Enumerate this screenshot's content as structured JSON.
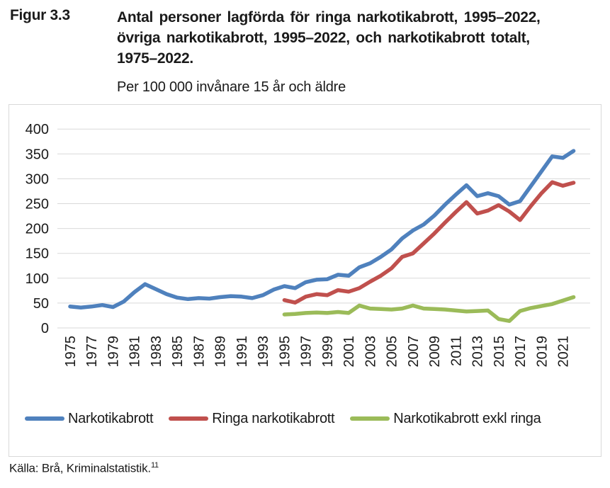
{
  "figure": {
    "label": "Figur 3.3",
    "title_lines": [
      "Antal personer lagförda för ringa narkotikabrott, 1995–2022,",
      "övriga narkotikabrott, 1995–2022, och narkotikabrott totalt,",
      "1975–2022."
    ],
    "subtitle": "Per 100 000 invånare 15 år och äldre",
    "source": "Källa: Brå, Kriminalstatistik.",
    "source_note_ref": "11"
  },
  "chart_data": {
    "type": "line",
    "title": "Antal personer lagförda för ringa narkotikabrott, 1995–2022, övriga narkotikabrott, 1995–2022, och narkotikabrott totalt, 1975–2022.",
    "subtitle": "Per 100 000 invånare 15 år och äldre",
    "xlabel": "",
    "ylabel": "Per 100 000 invånare 15 år och äldre",
    "ylim": [
      0,
      400
    ],
    "ytick_step": 50,
    "grid": true,
    "legend_position": "bottom",
    "x_range": [
      1975,
      2022
    ],
    "xtick_labels": [
      "1975",
      "1977",
      "1979",
      "1981",
      "1983",
      "1985",
      "1987",
      "1989",
      "1991",
      "1993",
      "1995",
      "1997",
      "1999",
      "2001",
      "2003",
      "2005",
      "2007",
      "2009",
      "2011",
      "2013",
      "2015",
      "2017",
      "2019",
      "2021"
    ],
    "grid_color": "#d9d9d9",
    "text_color": "#1a1a1a",
    "series": [
      {
        "name": "Narkotikabrott",
        "color": "#4f81bd",
        "start_year": 1975,
        "values": [
          43,
          41,
          43,
          46,
          42,
          53,
          72,
          88,
          78,
          68,
          61,
          58,
          60,
          59,
          62,
          64,
          63,
          60,
          66,
          77,
          84,
          80,
          92,
          97,
          98,
          107,
          105,
          122,
          130,
          143,
          158,
          180,
          196,
          208,
          226,
          248,
          268,
          287,
          265,
          271,
          265,
          248,
          255,
          285,
          315,
          345,
          342,
          356
        ]
      },
      {
        "name": "Ringa narkotikabrott",
        "color": "#c0504d",
        "start_year": 1995,
        "values": [
          56,
          51,
          63,
          68,
          66,
          76,
          73,
          80,
          93,
          105,
          120,
          143,
          150,
          170,
          190,
          212,
          233,
          253,
          230,
          236,
          247,
          234,
          217,
          245,
          271,
          293,
          286,
          292
        ]
      },
      {
        "name": "Narkotikabrott exkl ringa",
        "color": "#9bbb59",
        "start_year": 1995,
        "values": [
          27,
          28,
          30,
          31,
          30,
          32,
          30,
          45,
          39,
          38,
          37,
          39,
          45,
          39,
          38,
          37,
          35,
          33,
          34,
          35,
          18,
          14,
          34,
          40,
          44,
          48,
          55,
          62
        ]
      }
    ]
  }
}
